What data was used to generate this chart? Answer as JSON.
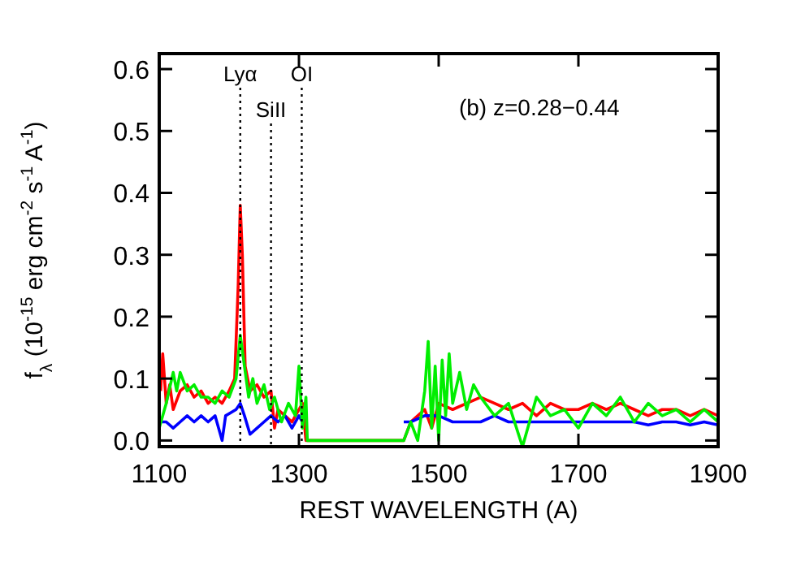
{
  "chart_data": {
    "type": "line",
    "xlabel": "REST WAVELENGTH (A)",
    "ylabel": "f$_{λ}$ (10$^{-15}$ erg cm$^{-2}$ s$^{-1}$ A$^{-1}$)",
    "annotations": [
      "(b) z=0.28−0.44"
    ],
    "xlim": [
      1100,
      1900
    ],
    "xticks": [
      1100,
      1300,
      1500,
      1700,
      1900
    ],
    "ylim": [
      -0.01,
      0.625
    ],
    "yticks": [
      {
        "value": 0,
        "label": "0.0"
      },
      {
        "value": 0.1,
        "label": "0.1"
      },
      {
        "value": 0.2,
        "label": "0.2"
      },
      {
        "value": 0.3,
        "label": "0.3"
      },
      {
        "value": 0.4,
        "label": "0.4"
      },
      {
        "value": 0.5,
        "label": "0.5"
      },
      {
        "value": 0.6,
        "label": "0.6"
      }
    ],
    "ref_lines": [
      {
        "axis": "x",
        "value": 1216,
        "label": "Lyα",
        "line_style": "dotted",
        "color": "#000000"
      },
      {
        "axis": "x",
        "value": 1260,
        "label": "SiII",
        "line_style": "dotted",
        "color": "#000000"
      },
      {
        "axis": "x",
        "value": 1304,
        "label": "OI",
        "line_style": "dotted",
        "color": "#000000"
      }
    ],
    "grid": false,
    "marker": "none",
    "line_style": "solid",
    "series": [
      {
        "color": "#ff0000",
        "x": [
          1102,
          1105,
          1110,
          1115,
          1120,
          1130,
          1140,
          1150,
          1160,
          1170,
          1180,
          1190,
          1200,
          1208,
          1213,
          1216,
          1219,
          1223,
          1230,
          1240,
          1250,
          1260,
          1265,
          1270,
          1280,
          1290,
          1300,
          1305,
          1310,
          1450,
          1460,
          1480,
          1490,
          1500,
          1520,
          1540,
          1560,
          1580,
          1600,
          1620,
          1640,
          1660,
          1680,
          1700,
          1720,
          1740,
          1760,
          1780,
          1800,
          1820,
          1840,
          1860,
          1880,
          1900
        ],
        "values": [
          0.08,
          0.14,
          0.06,
          0.09,
          0.05,
          0.08,
          0.09,
          0.07,
          0.08,
          0.06,
          0.07,
          0.06,
          0.08,
          0.1,
          0.25,
          0.38,
          0.3,
          0.12,
          0.08,
          0.09,
          0.07,
          0.08,
          0.02,
          0.05,
          0.04,
          0.03,
          0.05,
          0.06,
          0,
          0,
          0.03,
          0.05,
          0.02,
          0.06,
          0.05,
          0.06,
          0.07,
          0.06,
          0.05,
          0.06,
          0.04,
          0.06,
          0.05,
          0.05,
          0.06,
          0.05,
          0.06,
          0.05,
          0.04,
          0.05,
          0.05,
          0.04,
          0.05,
          0.04
        ]
      },
      {
        "color": "#0000ff",
        "x": [
          1100,
          1110,
          1120,
          1130,
          1140,
          1150,
          1160,
          1170,
          1180,
          1190,
          1195,
          1210,
          1216,
          1222,
          1230,
          1240,
          1250,
          1260,
          1270,
          1280,
          1290,
          1300,
          1305,
          1449,
          1450,
          1460,
          1480,
          1500,
          1520,
          1540,
          1560,
          1580,
          1600,
          1620,
          1640,
          1660,
          1680,
          1700,
          1720,
          1740,
          1760,
          1780,
          1800,
          1820,
          1840,
          1860,
          1880,
          1900
        ],
        "values": [
          0.03,
          0.03,
          0.02,
          0.03,
          0.04,
          0.03,
          0.04,
          0.03,
          0.04,
          0,
          0.04,
          0.05,
          0.06,
          0.04,
          0.01,
          0.02,
          0.03,
          0.04,
          0.03,
          0.04,
          0.02,
          0.04,
          0.03,
          null,
          0.03,
          0.03,
          0.04,
          0.04,
          0.03,
          0.03,
          0.03,
          0.04,
          0.03,
          0.03,
          0.03,
          0.03,
          0.03,
          0.03,
          0.03,
          0.03,
          0.03,
          0.03,
          0.025,
          0.03,
          0.03,
          0.025,
          0.03,
          0.025
        ]
      },
      {
        "color": "#00ee00",
        "x": [
          1100,
          1110,
          1120,
          1125,
          1130,
          1140,
          1150,
          1160,
          1170,
          1180,
          1190,
          1200,
          1210,
          1216,
          1222,
          1228,
          1234,
          1240,
          1250,
          1258,
          1265,
          1275,
          1285,
          1295,
          1300,
          1305,
          1310,
          1312,
          1450,
          1460,
          1470,
          1480,
          1485,
          1490,
          1495,
          1500,
          1505,
          1510,
          1515,
          1520,
          1530,
          1540,
          1550,
          1560,
          1580,
          1600,
          1620,
          1640,
          1660,
          1680,
          1700,
          1720,
          1740,
          1760,
          1780,
          1800,
          1820,
          1840,
          1860,
          1880,
          1900
        ],
        "values": [
          0.02,
          0.06,
          0.11,
          0.08,
          0.11,
          0.08,
          0.09,
          0.07,
          0.07,
          0.06,
          0.08,
          0.07,
          0.1,
          0.17,
          0.12,
          0.07,
          0.1,
          0.06,
          0.09,
          0.05,
          0.07,
          0.03,
          0.06,
          0.04,
          0.12,
          0.02,
          0.07,
          0,
          0,
          0.03,
          0,
          0.08,
          0.16,
          0.02,
          0.12,
          0,
          0.13,
          0.04,
          0.14,
          0.06,
          0.11,
          0.05,
          0.09,
          0.07,
          0.04,
          0.06,
          -0.01,
          0.07,
          0.04,
          0.05,
          0.02,
          0.06,
          0.04,
          0.07,
          0.03,
          0.06,
          0.04,
          0.05,
          0.03,
          0.05,
          0.03
        ]
      }
    ]
  }
}
